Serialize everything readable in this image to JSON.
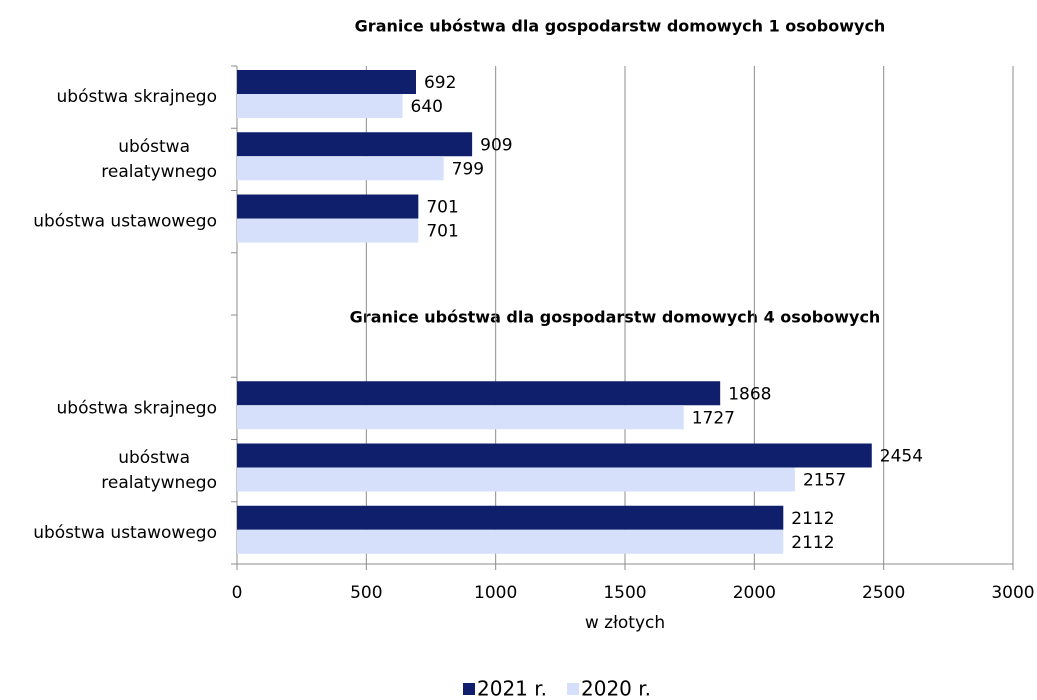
{
  "chart_data": {
    "type": "bar",
    "orientation": "horizontal",
    "title": "Granice ubóstwa dla gospodarstw domowych 1 osobowych",
    "annotations": [
      "Granice ubóstwa dla gospodarstw domowych 4 osobowych"
    ],
    "categories": [
      "ubóstwa skrajnego",
      "ubóstwa realatywnego",
      "ubóstwa ustawowego",
      null,
      null,
      "ubóstwa skrajnego",
      "ubóstwa realatywnego",
      "ubóstwa ustawowego"
    ],
    "series": [
      {
        "name": "2021 r.",
        "color": "#0f1f6b",
        "values": [
          692,
          909,
          701,
          null,
          null,
          1868,
          2454,
          2112
        ]
      },
      {
        "name": "2020 r.",
        "color": "#d6e0fa",
        "values": [
          640,
          799,
          701,
          null,
          null,
          1727,
          2157,
          2112
        ]
      }
    ],
    "xlim": [
      0,
      3000
    ],
    "xticks": [
      0,
      500,
      1000,
      1500,
      2000,
      2500,
      3000
    ],
    "xlabel": "w złotych",
    "grid": true,
    "legend": "bottom"
  }
}
